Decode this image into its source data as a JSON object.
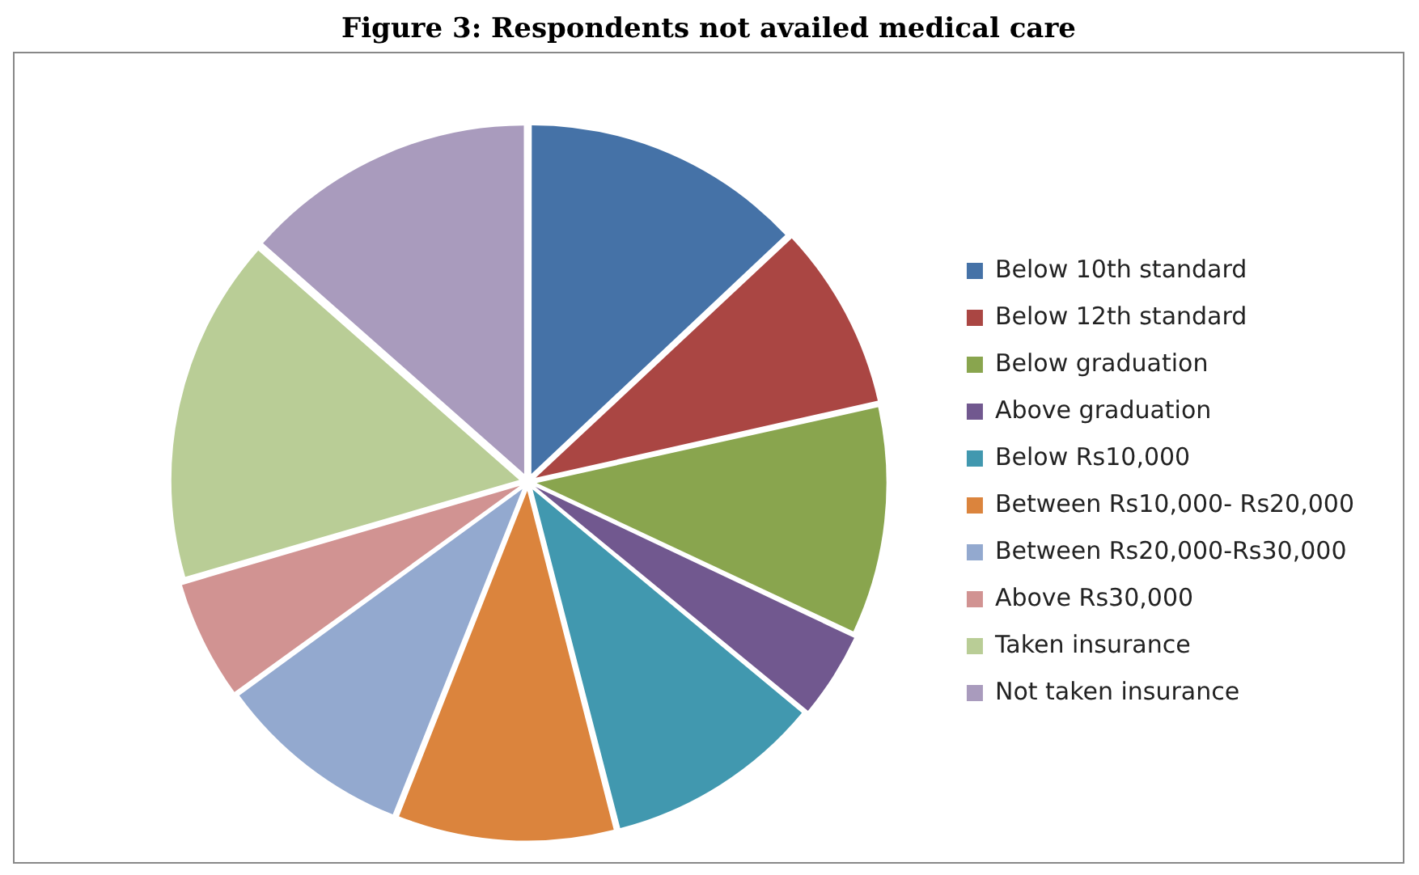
{
  "chart_data": {
    "type": "pie",
    "title": "Figure 3: Respondents not availed medical care",
    "categories": [
      "Below 10th standard",
      "Below 12th standard",
      "Below graduation",
      "Above graduation",
      "Below Rs10,000",
      "Between Rs10,000- Rs20,000",
      "Between Rs20,000-Rs30,000",
      "Above Rs30,000",
      "Taken insurance",
      "Not taken insurance"
    ],
    "values": [
      13,
      8.5,
      10.5,
      4,
      10,
      10,
      9,
      5.5,
      16,
      13.5
    ],
    "colors": [
      "#4572a7",
      "#aa4643",
      "#89a54e",
      "#71588f",
      "#4198af",
      "#db843d",
      "#93a9cf",
      "#d19392",
      "#b9cd96",
      "#a99bbd"
    ],
    "legend": "right"
  }
}
